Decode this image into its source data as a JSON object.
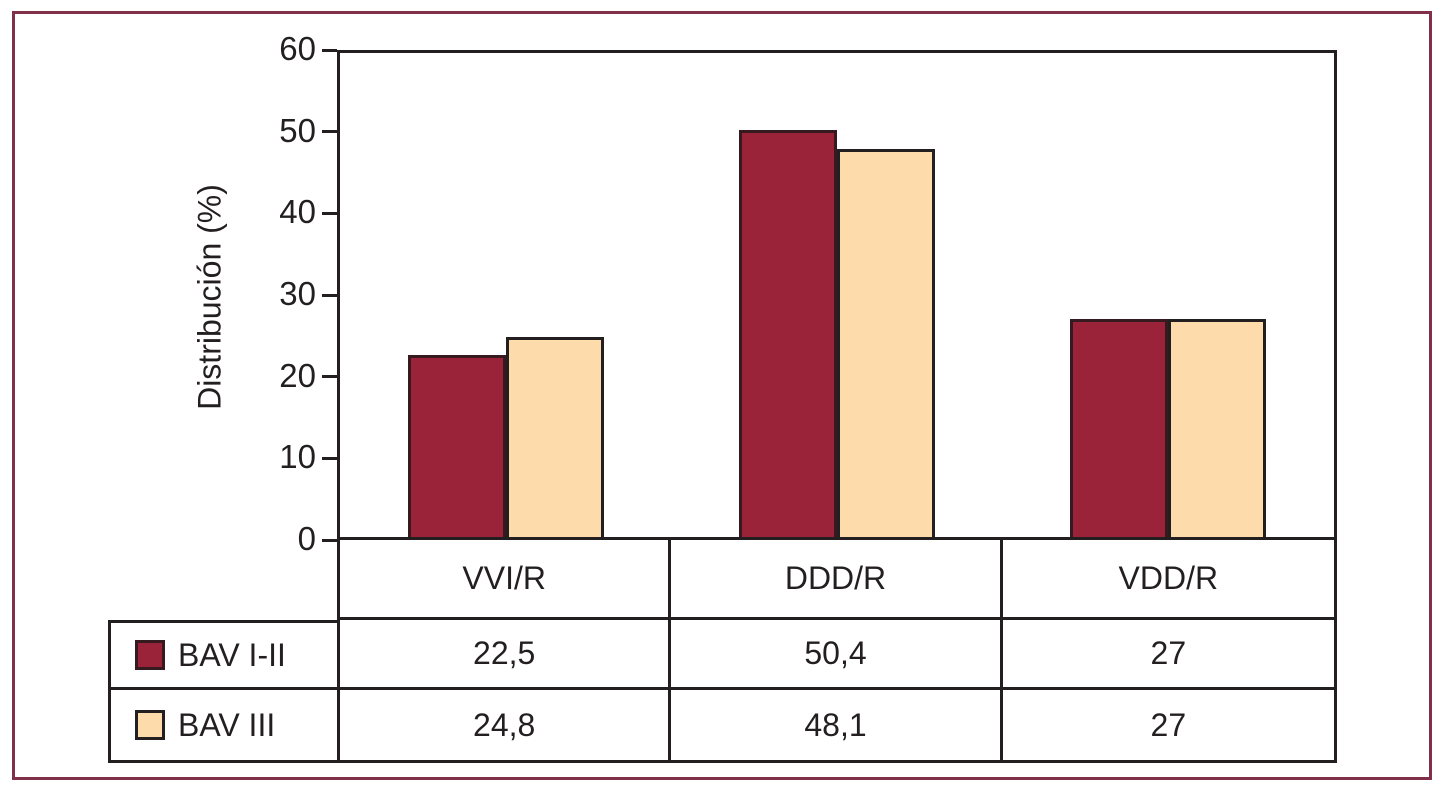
{
  "figure": {
    "background": "#ffffff",
    "outer_border_color": "#803049",
    "line_color": "#231f20",
    "text_color": "#231f20"
  },
  "chart_data": {
    "type": "bar",
    "title": "",
    "xlabel": "",
    "ylabel": "Distribución (%)",
    "ylim": [
      0,
      60
    ],
    "yticks": [
      0,
      10,
      20,
      30,
      40,
      50,
      60
    ],
    "grid": false,
    "legend_position": "table-below-left",
    "categories": [
      "VVI/R",
      "DDD/R",
      "VDD/R"
    ],
    "series": [
      {
        "name": "BAV I-II",
        "values": [
          22.5,
          50.4,
          27
        ],
        "display_values": [
          "22,5",
          "50,4",
          "27"
        ],
        "color": "#9b2339",
        "border_color": "#371a1f"
      },
      {
        "name": "BAV III",
        "values": [
          24.8,
          48.1,
          27
        ],
        "display_values": [
          "24,8",
          "48,1",
          "27"
        ],
        "color": "#fddbaa",
        "border_color": "#231f20"
      }
    ]
  }
}
